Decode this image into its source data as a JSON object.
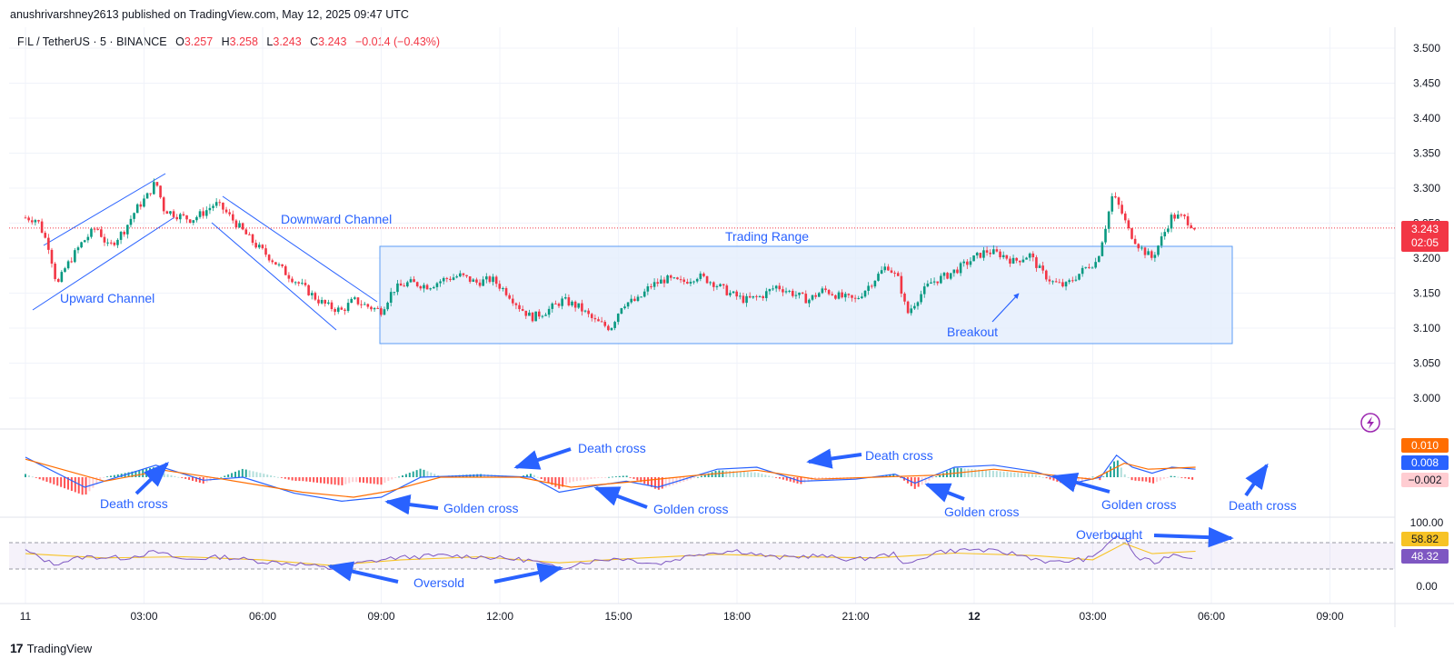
{
  "header": {
    "published_line": "anushrivarshney2613 published on TradingView.com, May 12, 2025 09:47 UTC"
  },
  "legend": {
    "symbol": "FIL / TetherUS · 5 · BINANCE",
    "o_key": "O",
    "o_val": "3.257",
    "h_key": "H",
    "h_val": "3.258",
    "l_key": "L",
    "l_val": "3.243",
    "c_key": "C",
    "c_val": "3.243",
    "change": "−0.014 (−0.43%)"
  },
  "footer": {
    "brand": "TradingView",
    "logo": "17"
  },
  "colors": {
    "up": "#089981",
    "down": "#f23645",
    "macd_line": "#2962ff",
    "signal_line": "#ff6d00",
    "rsi_line": "#7e57c2",
    "rsi_ma": "#f7c325",
    "annotation": "#2962ff",
    "range_fill": "#e3edfd"
  },
  "chart_data": [
    {
      "type": "candlestick",
      "symbol": "FIL / TetherUS",
      "interval": "5",
      "exchange": "BINANCE",
      "y_ticks": [
        "3.500",
        "3.450",
        "3.400",
        "3.350",
        "3.300",
        "3.250",
        "3.200",
        "3.150",
        "3.100",
        "3.050",
        "3.000"
      ],
      "ylim": [
        2.98,
        3.52
      ],
      "x_ticks": [
        "11",
        "03:00",
        "06:00",
        "09:00",
        "12:00",
        "15:00",
        "18:00",
        "21:00",
        "12",
        "03:00",
        "06:00",
        "09:00"
      ],
      "last_price": "3.243",
      "last_price_countdown": "02:05",
      "price_path": [
        [
          0,
          3.258
        ],
        [
          0.3,
          3.255
        ],
        [
          0.6,
          3.215
        ],
        [
          0.8,
          3.16
        ],
        [
          1.0,
          3.185
        ],
        [
          1.4,
          3.22
        ],
        [
          1.8,
          3.245
        ],
        [
          2.1,
          3.215
        ],
        [
          2.5,
          3.24
        ],
        [
          2.8,
          3.27
        ],
        [
          3.1,
          3.29
        ],
        [
          3.3,
          3.31
        ],
        [
          3.5,
          3.27
        ],
        [
          3.8,
          3.262
        ],
        [
          4.2,
          3.255
        ],
        [
          4.5,
          3.265
        ],
        [
          4.8,
          3.278
        ],
        [
          5.0,
          3.27
        ],
        [
          5.4,
          3.245
        ],
        [
          5.8,
          3.22
        ],
        [
          6.2,
          3.2
        ],
        [
          6.6,
          3.178
        ],
        [
          7.0,
          3.16
        ],
        [
          7.4,
          3.14
        ],
        [
          7.7,
          3.13
        ],
        [
          8.0,
          3.125
        ],
        [
          8.3,
          3.14
        ],
        [
          8.7,
          3.13
        ],
        [
          9.0,
          3.125
        ],
        [
          9.3,
          3.155
        ],
        [
          9.7,
          3.165
        ],
        [
          10.2,
          3.16
        ],
        [
          10.6,
          3.17
        ],
        [
          11.0,
          3.175
        ],
        [
          11.4,
          3.165
        ],
        [
          11.8,
          3.17
        ],
        [
          12.2,
          3.15
        ],
        [
          12.5,
          3.13
        ],
        [
          12.8,
          3.115
        ],
        [
          13.2,
          3.125
        ],
        [
          13.6,
          3.14
        ],
        [
          14.0,
          3.13
        ],
        [
          14.4,
          3.11
        ],
        [
          14.8,
          3.1
        ],
        [
          15.1,
          3.135
        ],
        [
          15.5,
          3.14
        ],
        [
          15.8,
          3.16
        ],
        [
          16.2,
          3.17
        ],
        [
          16.6,
          3.165
        ],
        [
          17.0,
          3.175
        ],
        [
          17.4,
          3.165
        ],
        [
          17.8,
          3.15
        ],
        [
          18.2,
          3.14
        ],
        [
          18.6,
          3.145
        ],
        [
          19.0,
          3.16
        ],
        [
          19.4,
          3.15
        ],
        [
          19.8,
          3.14
        ],
        [
          20.2,
          3.155
        ],
        [
          20.6,
          3.145
        ],
        [
          21.0,
          3.14
        ],
        [
          21.4,
          3.165
        ],
        [
          21.8,
          3.19
        ],
        [
          22.1,
          3.168
        ],
        [
          22.3,
          3.12
        ],
        [
          22.6,
          3.145
        ],
        [
          22.9,
          3.165
        ],
        [
          23.3,
          3.175
        ],
        [
          23.6,
          3.185
        ],
        [
          24.0,
          3.2
        ],
        [
          24.3,
          3.21
        ],
        [
          24.7,
          3.205
        ],
        [
          25.0,
          3.195
        ],
        [
          25.4,
          3.205
        ],
        [
          25.7,
          3.18
        ],
        [
          26.0,
          3.165
        ],
        [
          26.3,
          3.16
        ],
        [
          26.6,
          3.175
        ],
        [
          26.9,
          3.19
        ],
        [
          27.1,
          3.195
        ],
        [
          27.3,
          3.24
        ],
        [
          27.5,
          3.29
        ],
        [
          27.7,
          3.27
        ],
        [
          27.9,
          3.24
        ],
        [
          28.2,
          3.215
        ],
        [
          28.5,
          3.2
        ],
        [
          28.8,
          3.235
        ],
        [
          29.0,
          3.26
        ],
        [
          29.3,
          3.258
        ],
        [
          29.6,
          3.243
        ]
      ]
    },
    {
      "type": "macd",
      "label_values": [
        "0.010",
        "0.008",
        "−0.002"
      ],
      "macd": [
        [
          0,
          0.02
        ],
        [
          1.5,
          -0.01
        ],
        [
          3.3,
          0.012
        ],
        [
          4.5,
          -0.003
        ],
        [
          5.5,
          0.0
        ],
        [
          6.8,
          -0.016
        ],
        [
          8.0,
          -0.024
        ],
        [
          9.0,
          -0.02
        ],
        [
          10.0,
          0.0
        ],
        [
          11.5,
          0.002
        ],
        [
          12.8,
          0.0
        ],
        [
          13.5,
          -0.015
        ],
        [
          14.5,
          -0.008
        ],
        [
          15.2,
          -0.004
        ],
        [
          16.0,
          -0.01
        ],
        [
          17.5,
          0.008
        ],
        [
          18.5,
          0.01
        ],
        [
          19.6,
          -0.004
        ],
        [
          21.0,
          -0.002
        ],
        [
          22.0,
          0.003
        ],
        [
          22.5,
          -0.006
        ],
        [
          23.5,
          0.01
        ],
        [
          24.5,
          0.012
        ],
        [
          25.5,
          0.006
        ],
        [
          26.5,
          -0.006
        ],
        [
          27.2,
          0.0
        ],
        [
          27.6,
          0.022
        ],
        [
          28.0,
          0.01
        ],
        [
          28.5,
          0.004
        ],
        [
          29.0,
          0.01
        ],
        [
          29.6,
          0.008
        ]
      ],
      "signal": [
        [
          0,
          0.018
        ],
        [
          2.0,
          -0.004
        ],
        [
          3.5,
          0.007
        ],
        [
          5.0,
          -0.002
        ],
        [
          7.0,
          -0.015
        ],
        [
          8.3,
          -0.02
        ],
        [
          9.2,
          -0.014
        ],
        [
          10.5,
          0.0
        ],
        [
          12.5,
          0.0
        ],
        [
          13.8,
          -0.01
        ],
        [
          15.5,
          -0.004
        ],
        [
          17.0,
          0.002
        ],
        [
          18.5,
          0.007
        ],
        [
          20.0,
          -0.002
        ],
        [
          21.5,
          0.0
        ],
        [
          23.0,
          0.002
        ],
        [
          24.5,
          0.008
        ],
        [
          26.0,
          0.002
        ],
        [
          27.0,
          -0.002
        ],
        [
          27.8,
          0.014
        ],
        [
          28.4,
          0.008
        ],
        [
          29.6,
          0.01
        ]
      ]
    },
    {
      "type": "rsi",
      "y_ticks": [
        "100.00",
        "0.00"
      ],
      "label_values": [
        "58.82",
        "48.32"
      ],
      "ylim": [
        0,
        100
      ],
      "bands": [
        70,
        30
      ],
      "rsi": [
        [
          0,
          60
        ],
        [
          0.7,
          38
        ],
        [
          1.5,
          50
        ],
        [
          2.5,
          48
        ],
        [
          3.3,
          58
        ],
        [
          4.0,
          45
        ],
        [
          5.0,
          50
        ],
        [
          6.0,
          42
        ],
        [
          7.0,
          38
        ],
        [
          7.7,
          30
        ],
        [
          8.5,
          40
        ],
        [
          9.3,
          48
        ],
        [
          10.5,
          52
        ],
        [
          11.5,
          50
        ],
        [
          12.8,
          44
        ],
        [
          13.5,
          30
        ],
        [
          14.0,
          40
        ],
        [
          15.0,
          48
        ],
        [
          16.0,
          38
        ],
        [
          17.0,
          55
        ],
        [
          18.0,
          60
        ],
        [
          19.0,
          48
        ],
        [
          20.0,
          52
        ],
        [
          21.0,
          45
        ],
        [
          22.0,
          55
        ],
        [
          22.3,
          35
        ],
        [
          23.0,
          58
        ],
        [
          24.0,
          62
        ],
        [
          25.0,
          55
        ],
        [
          26.0,
          40
        ],
        [
          27.0,
          48
        ],
        [
          27.5,
          80
        ],
        [
          27.8,
          82
        ],
        [
          28.1,
          48
        ],
        [
          28.6,
          40
        ],
        [
          29.0,
          55
        ],
        [
          29.6,
          48
        ]
      ],
      "rsi_ma": [
        [
          0,
          55
        ],
        [
          2.0,
          48
        ],
        [
          4.0,
          50
        ],
        [
          6.0,
          45
        ],
        [
          7.7,
          36
        ],
        [
          9.5,
          45
        ],
        [
          11.5,
          50
        ],
        [
          13.5,
          40
        ],
        [
          15.0,
          46
        ],
        [
          17.5,
          54
        ],
        [
          19.5,
          50
        ],
        [
          21.5,
          48
        ],
        [
          23.5,
          56
        ],
        [
          25.5,
          52
        ],
        [
          27.0,
          45
        ],
        [
          27.8,
          72
        ],
        [
          28.5,
          55
        ],
        [
          29.6,
          59
        ]
      ]
    }
  ],
  "annotations": {
    "upward_channel": "Upward Channel",
    "downward_channel": "Downward Channel",
    "trading_range": "Trading Range",
    "breakout": "Breakout",
    "death_cross_1": "Death cross",
    "death_cross_2": "Death cross",
    "death_cross_3": "Death cross",
    "death_cross_4": "Death cross",
    "golden_cross_1": "Golden cross",
    "golden_cross_2": "Golden cross",
    "golden_cross_3": "Golden cross",
    "golden_cross_4": "Golden cross",
    "oversold": "Oversold",
    "overbought": "Overbought"
  },
  "icons": {
    "flash": "flash-icon"
  }
}
